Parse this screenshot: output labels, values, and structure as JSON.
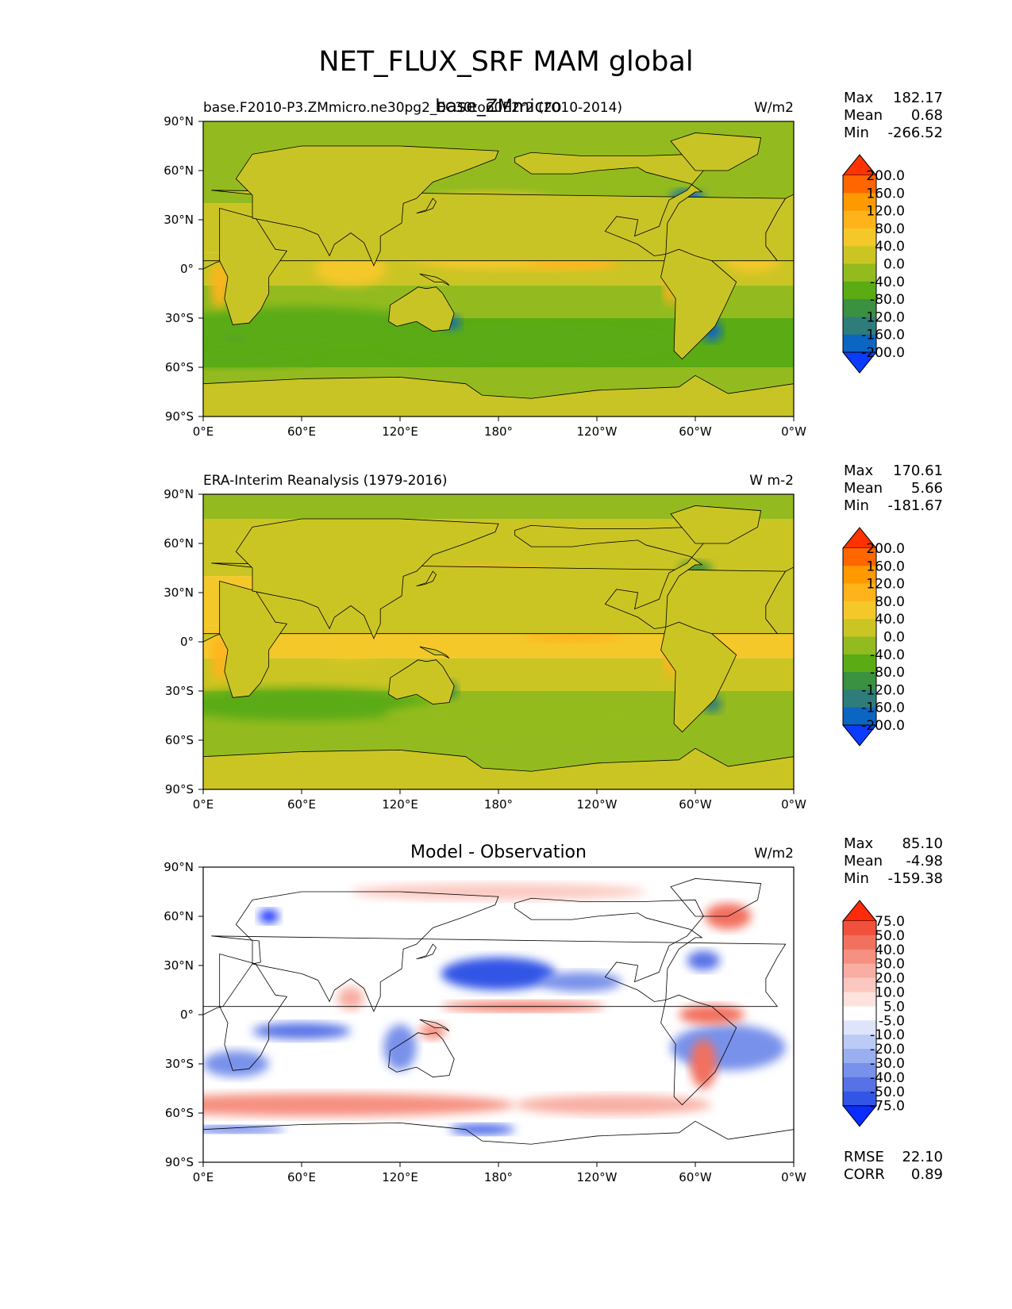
{
  "page": {
    "title": "NET_FLUX_SRF MAM global"
  },
  "chart_data": [
    {
      "type": "heatmap",
      "panel": "test",
      "title_left": "base.F2010-P3.ZMmicro.ne30pg2_EC30to60E2r2 (2010-2014)",
      "title_center": "base_ZMmicro",
      "units": "W/m2",
      "stats": {
        "max": "182.17",
        "mean": "0.68",
        "min": "-266.52"
      },
      "x_ticks": [
        "0°E",
        "60°E",
        "120°E",
        "180°",
        "120°W",
        "60°W",
        "0°W"
      ],
      "y_ticks": [
        "90°N",
        "60°N",
        "30°N",
        "0°",
        "30°S",
        "60°S",
        "90°S"
      ],
      "xlim": [
        0,
        360
      ],
      "ylim": [
        -90,
        90
      ],
      "colorbar": {
        "levels": [
          "200.0",
          "160.0",
          "120.0",
          "80.0",
          "40.0",
          "0.0",
          "-40.0",
          "-80.0",
          "-120.0",
          "-160.0",
          "-200.0"
        ],
        "colors": [
          "#ff3300",
          "#ff6600",
          "#ff9900",
          "#ffb31a",
          "#f5c82a",
          "#cbc524",
          "#93bb1f",
          "#5aab14",
          "#3a9140",
          "#2e7d7a",
          "#0b65c2",
          "#0a3cff"
        ]
      }
    },
    {
      "type": "heatmap",
      "panel": "reference",
      "title_left": "ERA-Interim Reanalysis (1979-2016)",
      "title_center": "",
      "units": "W m-2",
      "stats": {
        "max": "170.61",
        "mean": "5.66",
        "min": "-181.67"
      },
      "x_ticks": [
        "0°E",
        "60°E",
        "120°E",
        "180°",
        "120°W",
        "60°W",
        "0°W"
      ],
      "y_ticks": [
        "90°N",
        "60°N",
        "30°N",
        "0°",
        "30°S",
        "60°S",
        "90°S"
      ],
      "xlim": [
        0,
        360
      ],
      "ylim": [
        -90,
        90
      ],
      "colorbar": {
        "levels": [
          "200.0",
          "160.0",
          "120.0",
          "80.0",
          "40.0",
          "0.0",
          "-40.0",
          "-80.0",
          "-120.0",
          "-160.0",
          "-200.0"
        ],
        "colors": [
          "#ff3300",
          "#ff6600",
          "#ff9900",
          "#ffb31a",
          "#f5c82a",
          "#cbc524",
          "#93bb1f",
          "#5aab14",
          "#3a9140",
          "#2e7d7a",
          "#0b65c2",
          "#0a3cff"
        ]
      }
    },
    {
      "type": "heatmap",
      "panel": "difference",
      "title_left": "",
      "title_center": "Model - Observation",
      "units": "W/m2",
      "stats": {
        "max": "85.10",
        "mean": "-4.98",
        "min": "-159.38"
      },
      "metrics": {
        "rmse_label": "RMSE",
        "rmse": "22.10",
        "corr_label": "CORR",
        "corr": "0.89"
      },
      "x_ticks": [
        "0°E",
        "60°E",
        "120°E",
        "180°",
        "120°W",
        "60°W",
        "0°W"
      ],
      "y_ticks": [
        "90°N",
        "60°N",
        "30°N",
        "0°",
        "30°S",
        "60°S",
        "90°S"
      ],
      "xlim": [
        0,
        360
      ],
      "ylim": [
        -90,
        90
      ],
      "colorbar": {
        "levels": [
          "75.0",
          "50.0",
          "40.0",
          "30.0",
          "20.0",
          "10.0",
          "5.0",
          "-5.0",
          "-10.0",
          "-20.0",
          "-30.0",
          "-40.0",
          "-50.0",
          "-75.0"
        ],
        "colors": [
          "#ff2a0a",
          "#f0503c",
          "#f2705e",
          "#f69080",
          "#f8aea2",
          "#fbc8c0",
          "#fde2dd",
          "#ffffff",
          "#dde4fb",
          "#bccbf6",
          "#9aaff0",
          "#7891ea",
          "#5672e6",
          "#3355e6",
          "#0a2cff"
        ]
      }
    }
  ],
  "stat_labels": {
    "max": "Max",
    "mean": "Mean",
    "min": "Min"
  }
}
